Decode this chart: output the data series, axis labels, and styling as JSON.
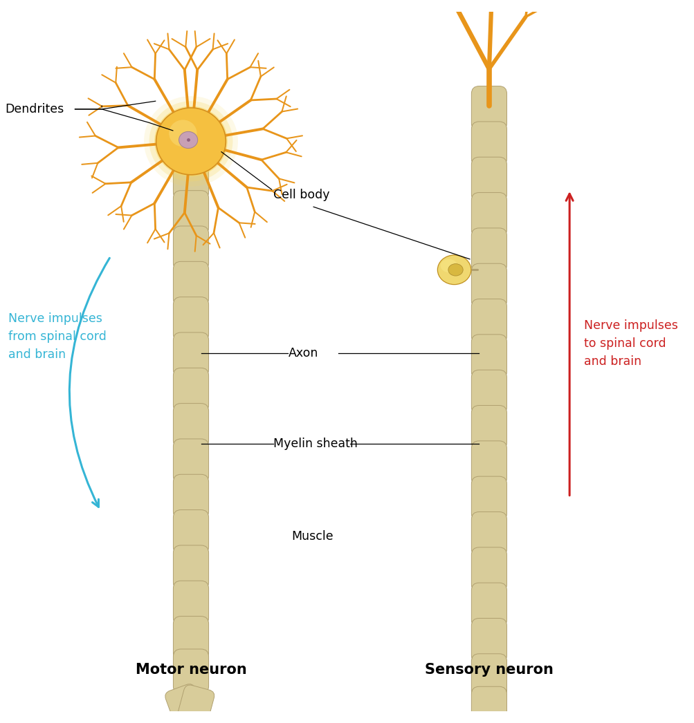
{
  "bg_color": "#ffffff",
  "dendrite_color": "#E8951A",
  "cell_body_color_motor": "#F5C060",
  "nucleus_color_motor": "#C8A0B5",
  "axon_color": "#D8CC9A",
  "axon_outline": "#B0A070",
  "muscle_base_color": "#C84040",
  "muscle_highlight": "#E05050",
  "muscle_nerve_color": "#E8951A",
  "blue_arrow_color": "#35B5D5",
  "red_arrow_color": "#CC2020",
  "label_color": "#000000",
  "motor_label": "Motor neuron",
  "sensory_label": "Sensory neuron",
  "dendrites_label": "Dendrites",
  "cell_body_label": "Cell body",
  "axon_label": "Axon",
  "myelin_label": "Myelin sheath",
  "muscle_label": "Muscle",
  "blue_text": "Nerve impulses\nfrom spinal cord\nand brain",
  "red_text": "Nerve impulses\nto spinal cord\nand brain",
  "blue_text_color": "#35B5D5",
  "red_text_color": "#CC2020",
  "sensory_cb_color": "#F0D870",
  "sensory_cb_nucleus": "#E0C060"
}
